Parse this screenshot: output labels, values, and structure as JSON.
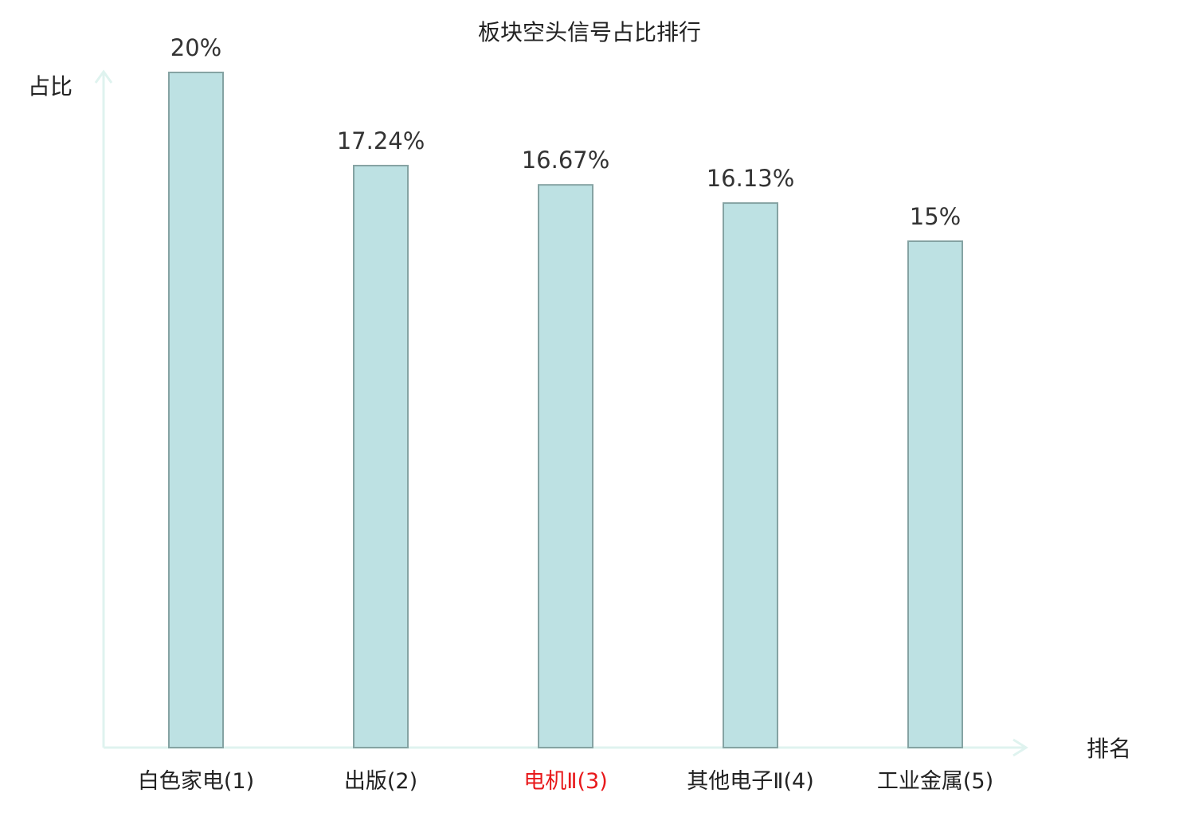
{
  "chart_data": {
    "type": "bar",
    "title": "板块空头信号占比排行",
    "y_label": "占比",
    "x_label": "排名",
    "categories": [
      "白色家电(1)",
      "出版(2)",
      "电机Ⅱ(3)",
      "其他电子Ⅱ(4)",
      "工业金属(5)"
    ],
    "values": [
      20,
      17.24,
      16.67,
      16.13,
      15
    ],
    "value_labels": [
      "20%",
      "17.24%",
      "16.67%",
      "16.13%",
      "15%"
    ],
    "category_label_colors": [
      "#222222",
      "#222222",
      "#e8191b",
      "#222222",
      "#222222"
    ],
    "color": "#bde1e3",
    "edge_color": "#85a3a3",
    "ylim": [
      0,
      20
    ]
  }
}
